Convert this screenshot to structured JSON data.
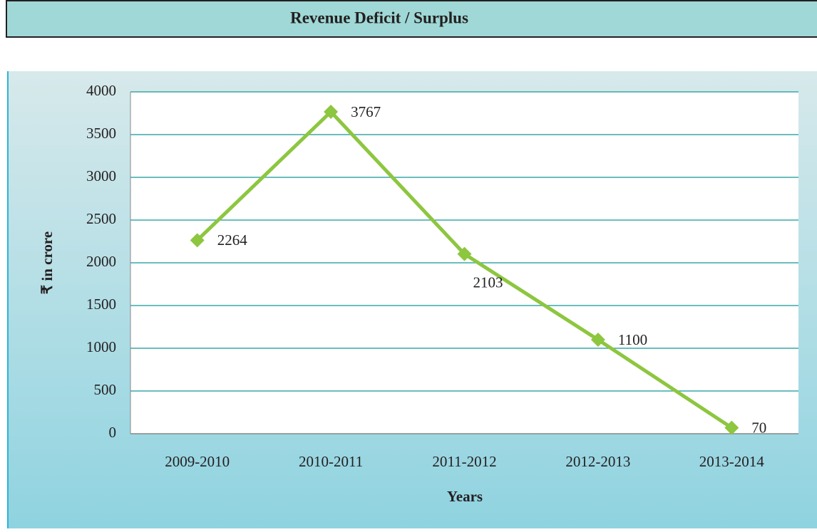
{
  "chart_data": {
    "type": "line",
    "title": "Revenue Deficit / Surplus",
    "x_label": "Years",
    "y_label": "₹ in crore",
    "categories": [
      "2009-2010",
      "2010-2011",
      "2011-2012",
      "2012-2013",
      "2013-2014"
    ],
    "values": [
      2264,
      3767,
      2103,
      1100,
      70
    ],
    "color": "#8dc63f",
    "ylim": [
      0,
      4000
    ],
    "yticks": [
      0,
      500,
      1000,
      1500,
      2000,
      2500,
      3000,
      3500,
      4000
    ],
    "grid": true
  }
}
